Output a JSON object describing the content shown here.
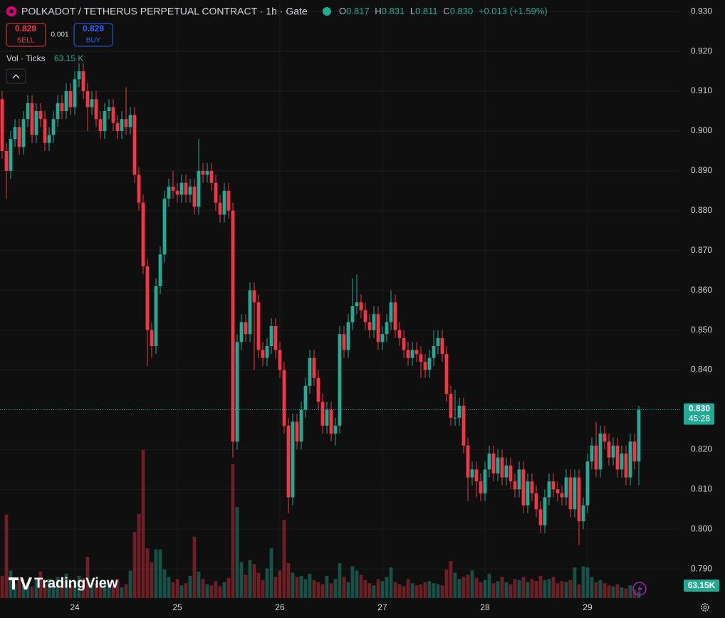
{
  "chart_data": {
    "type": "candlestick",
    "title": "POLKADOT / TETHERUS PERPETUAL CONTRACT · 1h · Gate",
    "ohlc_legend": [
      {
        "key": "O",
        "text": "0.817"
      },
      {
        "key": "H",
        "text": "0.831"
      },
      {
        "key": "L",
        "text": "0.811"
      },
      {
        "key": "C",
        "text": "0.830"
      }
    ],
    "change_label": "+0.013 (+1.59%)",
    "sell": {
      "price": 0.828,
      "label": "SELL"
    },
    "spread": 0.001,
    "buy": {
      "price": 0.829,
      "label": "BUY"
    },
    "volume_legend": {
      "name": "Vol · Ticks",
      "text": "63.15 K"
    },
    "last_price_label": "0.830",
    "countdown": "45:28",
    "last_volume_label": "63.15K",
    "watermark": "TradingView",
    "up_color": "#22ab94",
    "down_color": "#f23645",
    "grid": true,
    "xlim": [
      -0.5,
      158.67
    ],
    "xticks": [
      {
        "value": 17,
        "label": "24"
      },
      {
        "value": 41,
        "label": "25"
      },
      {
        "value": 65,
        "label": "26"
      },
      {
        "value": 89,
        "label": "27"
      },
      {
        "value": 113,
        "label": "28"
      },
      {
        "value": 137,
        "label": "29"
      }
    ],
    "ylim": [
      0.7827,
      0.9329
    ],
    "yticks": [
      {
        "value": 0.93,
        "label": "0.930"
      },
      {
        "value": 0.92,
        "label": "0.920"
      },
      {
        "value": 0.91,
        "label": "0.910"
      },
      {
        "value": 0.9,
        "label": "0.900"
      },
      {
        "value": 0.89,
        "label": "0.890"
      },
      {
        "value": 0.88,
        "label": "0.880"
      },
      {
        "value": 0.87,
        "label": "0.870"
      },
      {
        "value": 0.86,
        "label": "0.860"
      },
      {
        "value": 0.85,
        "label": "0.850"
      },
      {
        "value": 0.84,
        "label": "0.840"
      },
      {
        "value": 0.83,
        "label": "0.830"
      },
      {
        "value": 0.82,
        "label": "0.820"
      },
      {
        "value": 0.81,
        "label": "0.810"
      },
      {
        "value": 0.8,
        "label": "0.800"
      },
      {
        "value": 0.79,
        "label": "0.790"
      }
    ],
    "vlim": [
      0,
      1500
    ],
    "open": [
      0.908,
      0.895,
      0.89,
      0.898,
      0.901,
      0.896,
      0.903,
      0.907,
      0.899,
      0.905,
      0.903,
      0.897,
      0.899,
      0.903,
      0.907,
      0.905,
      0.91,
      0.906,
      0.913,
      0.915,
      0.91,
      0.906,
      0.908,
      0.903,
      0.9,
      0.905,
      0.906,
      0.902,
      0.9,
      0.903,
      0.901,
      0.904,
      0.889,
      0.882,
      0.866,
      0.85,
      0.846,
      0.861,
      0.869,
      0.883,
      0.886,
      0.885,
      0.884,
      0.887,
      0.884,
      0.886,
      0.881,
      0.89,
      0.889,
      0.89,
      0.887,
      0.882,
      0.879,
      0.885,
      0.88,
      0.822,
      0.847,
      0.852,
      0.849,
      0.86,
      0.857,
      0.845,
      0.843,
      0.846,
      0.851,
      0.845,
      0.84,
      0.826,
      0.808,
      0.827,
      0.822,
      0.83,
      0.836,
      0.843,
      0.838,
      0.832,
      0.826,
      0.83,
      0.824,
      0.826,
      0.849,
      0.845,
      0.852,
      0.856,
      0.857,
      0.855,
      0.852,
      0.85,
      0.854,
      0.847,
      0.849,
      0.852,
      0.857,
      0.85,
      0.848,
      0.845,
      0.843,
      0.845,
      0.844,
      0.842,
      0.84,
      0.843,
      0.846,
      0.848,
      0.844,
      0.834,
      0.828,
      0.828,
      0.831,
      0.821,
      0.813,
      0.815,
      0.812,
      0.809,
      0.815,
      0.819,
      0.814,
      0.818,
      0.813,
      0.816,
      0.812,
      0.81,
      0.815,
      0.806,
      0.812,
      0.809,
      0.805,
      0.801,
      0.808,
      0.812,
      0.81,
      0.809,
      0.808,
      0.813,
      0.805,
      0.813,
      0.802,
      0.806,
      0.817,
      0.821,
      0.815,
      0.824,
      0.822,
      0.818,
      0.821,
      0.815,
      0.819,
      0.813,
      0.822,
      0.817
    ],
    "high": [
      0.91,
      0.897,
      0.9,
      0.903,
      0.903,
      0.905,
      0.909,
      0.909,
      0.907,
      0.907,
      0.905,
      0.901,
      0.905,
      0.909,
      0.909,
      0.912,
      0.912,
      0.915,
      0.917,
      0.917,
      0.912,
      0.91,
      0.91,
      0.905,
      0.907,
      0.908,
      0.908,
      0.904,
      0.905,
      0.911,
      0.906,
      0.906,
      0.891,
      0.884,
      0.868,
      0.852,
      0.863,
      0.871,
      0.885,
      0.888,
      0.89,
      0.887,
      0.889,
      0.889,
      0.888,
      0.888,
      0.898,
      0.892,
      0.892,
      0.892,
      0.889,
      0.884,
      0.887,
      0.887,
      0.882,
      0.849,
      0.854,
      0.854,
      0.862,
      0.862,
      0.859,
      0.847,
      0.848,
      0.853,
      0.853,
      0.847,
      0.842,
      0.828,
      0.829,
      0.829,
      0.832,
      0.838,
      0.845,
      0.845,
      0.84,
      0.834,
      0.832,
      0.832,
      0.828,
      0.851,
      0.851,
      0.854,
      0.863,
      0.864,
      0.859,
      0.857,
      0.854,
      0.856,
      0.856,
      0.851,
      0.854,
      0.86,
      0.859,
      0.852,
      0.85,
      0.847,
      0.847,
      0.847,
      0.846,
      0.844,
      0.845,
      0.85,
      0.85,
      0.85,
      0.846,
      0.836,
      0.835,
      0.833,
      0.833,
      0.823,
      0.817,
      0.817,
      0.814,
      0.817,
      0.821,
      0.821,
      0.82,
      0.82,
      0.818,
      0.818,
      0.814,
      0.817,
      0.817,
      0.814,
      0.814,
      0.811,
      0.807,
      0.81,
      0.814,
      0.814,
      0.812,
      0.811,
      0.815,
      0.815,
      0.815,
      0.815,
      0.808,
      0.819,
      0.823,
      0.827,
      0.826,
      0.826,
      0.824,
      0.823,
      0.823,
      0.821,
      0.821,
      0.824,
      0.824,
      0.831
    ],
    "low": [
      0.893,
      0.883,
      0.888,
      0.896,
      0.894,
      0.894,
      0.901,
      0.897,
      0.897,
      0.901,
      0.895,
      0.895,
      0.897,
      0.901,
      0.903,
      0.903,
      0.904,
      0.904,
      0.911,
      0.908,
      0.9,
      0.904,
      0.901,
      0.898,
      0.898,
      0.903,
      0.9,
      0.898,
      0.898,
      0.899,
      0.899,
      0.887,
      0.88,
      0.864,
      0.841,
      0.843,
      0.844,
      0.859,
      0.867,
      0.881,
      0.883,
      0.882,
      0.882,
      0.882,
      0.882,
      0.879,
      0.879,
      0.887,
      0.887,
      0.885,
      0.88,
      0.877,
      0.877,
      0.878,
      0.818,
      0.82,
      0.845,
      0.847,
      0.847,
      0.84,
      0.843,
      0.841,
      0.841,
      0.844,
      0.843,
      0.838,
      0.824,
      0.804,
      0.806,
      0.82,
      0.82,
      0.828,
      0.834,
      0.836,
      0.83,
      0.824,
      0.824,
      0.822,
      0.821,
      0.824,
      0.843,
      0.843,
      0.85,
      0.854,
      0.853,
      0.85,
      0.848,
      0.848,
      0.845,
      0.845,
      0.847,
      0.85,
      0.848,
      0.846,
      0.843,
      0.841,
      0.841,
      0.842,
      0.838,
      0.838,
      0.838,
      0.841,
      0.844,
      0.842,
      0.832,
      0.826,
      0.826,
      0.826,
      0.819,
      0.807,
      0.811,
      0.808,
      0.807,
      0.807,
      0.813,
      0.812,
      0.812,
      0.811,
      0.811,
      0.81,
      0.808,
      0.808,
      0.804,
      0.804,
      0.807,
      0.803,
      0.799,
      0.799,
      0.806,
      0.808,
      0.807,
      0.806,
      0.806,
      0.803,
      0.803,
      0.796,
      0.8,
      0.804,
      0.815,
      0.813,
      0.813,
      0.82,
      0.816,
      0.816,
      0.813,
      0.813,
      0.811,
      0.811,
      0.815,
      0.811
    ],
    "close": [
      0.895,
      0.89,
      0.898,
      0.901,
      0.896,
      0.903,
      0.907,
      0.899,
      0.905,
      0.903,
      0.897,
      0.899,
      0.903,
      0.907,
      0.905,
      0.91,
      0.906,
      0.913,
      0.915,
      0.91,
      0.906,
      0.908,
      0.903,
      0.9,
      0.905,
      0.906,
      0.902,
      0.9,
      0.903,
      0.901,
      0.904,
      0.889,
      0.882,
      0.866,
      0.85,
      0.846,
      0.861,
      0.869,
      0.883,
      0.886,
      0.885,
      0.884,
      0.887,
      0.884,
      0.886,
      0.881,
      0.89,
      0.889,
      0.89,
      0.887,
      0.882,
      0.879,
      0.885,
      0.88,
      0.822,
      0.847,
      0.852,
      0.849,
      0.86,
      0.857,
      0.845,
      0.843,
      0.846,
      0.851,
      0.845,
      0.84,
      0.826,
      0.808,
      0.827,
      0.822,
      0.83,
      0.836,
      0.843,
      0.838,
      0.832,
      0.826,
      0.83,
      0.824,
      0.826,
      0.849,
      0.845,
      0.852,
      0.856,
      0.857,
      0.855,
      0.852,
      0.85,
      0.854,
      0.847,
      0.849,
      0.852,
      0.857,
      0.85,
      0.848,
      0.845,
      0.843,
      0.845,
      0.844,
      0.842,
      0.84,
      0.843,
      0.846,
      0.848,
      0.844,
      0.834,
      0.828,
      0.828,
      0.831,
      0.821,
      0.813,
      0.815,
      0.812,
      0.809,
      0.815,
      0.819,
      0.814,
      0.818,
      0.813,
      0.816,
      0.812,
      0.81,
      0.815,
      0.806,
      0.812,
      0.809,
      0.805,
      0.801,
      0.808,
      0.812,
      0.81,
      0.809,
      0.808,
      0.813,
      0.805,
      0.813,
      0.802,
      0.806,
      0.817,
      0.821,
      0.815,
      0.824,
      0.822,
      0.818,
      0.821,
      0.815,
      0.819,
      0.813,
      0.822,
      0.817,
      0.83
    ],
    "volume": [
      210,
      790,
      260,
      140,
      180,
      120,
      150,
      110,
      170,
      250,
      130,
      180,
      140,
      200,
      150,
      230,
      120,
      160,
      210,
      190,
      390,
      170,
      140,
      110,
      130,
      150,
      120,
      180,
      100,
      130,
      260,
      625,
      794,
      1400,
      470,
      340,
      460,
      460,
      270,
      200,
      150,
      180,
      120,
      140,
      210,
      580,
      250,
      180,
      130,
      120,
      160,
      110,
      150,
      190,
      1265,
      860,
      340,
      220,
      360,
      320,
      240,
      170,
      280,
      470,
      200,
      260,
      740,
      330,
      240,
      200,
      210,
      180,
      230,
      170,
      150,
      130,
      210,
      140,
      180,
      330,
      200,
      150,
      300,
      260,
      220,
      170,
      140,
      120,
      180,
      160,
      200,
      290,
      150,
      130,
      110,
      180,
      140,
      120,
      130,
      150,
      160,
      140,
      130,
      120,
      270,
      350,
      240,
      180,
      200,
      220,
      260,
      190,
      150,
      170,
      230,
      140,
      160,
      200,
      150,
      130,
      180,
      170,
      200,
      150,
      180,
      160,
      210,
      170,
      180,
      200,
      140,
      160,
      150,
      170,
      290,
      130,
      300,
      290,
      200,
      150,
      170,
      140,
      120,
      110,
      130,
      100,
      90,
      120,
      80,
      63.15
    ]
  }
}
